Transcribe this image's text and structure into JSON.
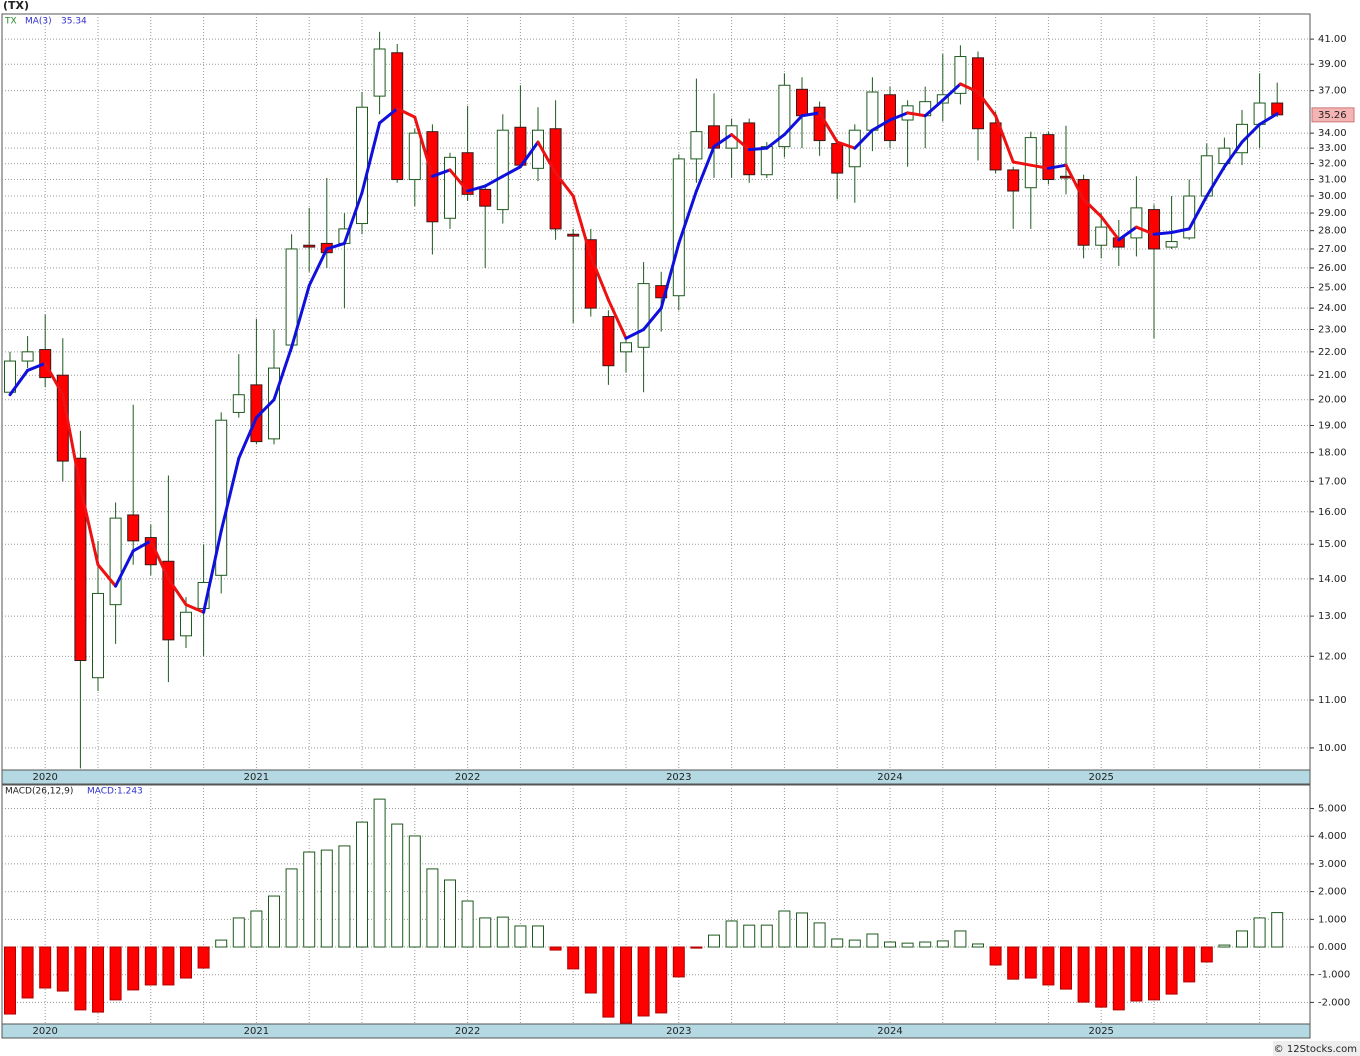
{
  "chart_data": [
    {
      "type": "candlestick",
      "title": "(TX)",
      "symbol": "TX",
      "log": true,
      "grid": true,
      "up_color": "#ffffff",
      "down_color": "#ff0000",
      "edge_color": "#1e5a1e",
      "categories": [
        null,
        null,
        "2020",
        null,
        null,
        null,
        null,
        null,
        null,
        null,
        null,
        null,
        null,
        null,
        "2021",
        null,
        null,
        null,
        null,
        null,
        null,
        null,
        null,
        null,
        null,
        null,
        "2022",
        null,
        null,
        null,
        null,
        null,
        null,
        null,
        null,
        null,
        null,
        null,
        "2023",
        null,
        null,
        null,
        null,
        null,
        null,
        null,
        null,
        null,
        null,
        null,
        "2024",
        null,
        null,
        null,
        null,
        null,
        null,
        null,
        null,
        null,
        null,
        null,
        "2025",
        null,
        null,
        null,
        null,
        null,
        null,
        null,
        null,
        null,
        null
      ],
      "open": [
        20.3,
        21.6,
        22.1,
        21.0,
        17.8,
        11.5,
        13.3,
        15.9,
        15.2,
        14.5,
        12.5,
        13.2,
        14.1,
        19.5,
        20.6,
        18.5,
        22.3,
        27.2,
        27.3,
        27.3,
        28.4,
        36.6,
        39.9,
        31.0,
        34.1,
        28.7,
        32.7,
        30.4,
        29.2,
        34.4,
        31.7,
        34.3,
        27.8,
        27.5,
        23.6,
        22.0,
        22.2,
        25.1,
        24.6,
        32.3,
        34.5,
        33.0,
        34.7,
        31.3,
        33.1,
        37.1,
        35.8,
        33.3,
        31.8,
        34.2,
        36.7,
        34.9,
        35.2,
        36.1,
        36.8,
        39.5,
        34.7,
        31.6,
        30.5,
        33.9,
        31.2,
        31.0,
        27.2,
        27.6,
        27.6,
        29.2,
        27.1,
        27.6,
        30.0,
        32.0,
        32.7,
        34.6,
        36.1
      ],
      "high": [
        22.0,
        22.7,
        23.7,
        22.6,
        18.8,
        15.1,
        16.3,
        19.8,
        15.6,
        17.2,
        13.5,
        15.0,
        19.5,
        21.9,
        23.5,
        23.0,
        27.8,
        29.3,
        31.1,
        29.0,
        36.9,
        41.6,
        40.6,
        34.3,
        34.6,
        32.7,
        35.9,
        30.7,
        35.3,
        37.4,
        35.8,
        36.3,
        28.1,
        28.1,
        23.9,
        22.7,
        26.3,
        25.8,
        32.6,
        37.9,
        36.8,
        35.0,
        35.0,
        33.4,
        38.3,
        38.0,
        36.2,
        33.6,
        34.6,
        38.0,
        37.3,
        36.3,
        37.3,
        39.8,
        40.5,
        40.0,
        35.5,
        31.8,
        34.1,
        34.1,
        34.5,
        31.3,
        29.0,
        28.6,
        31.2,
        29.5,
        30.0,
        31.0,
        33.3,
        33.7,
        35.6,
        38.3,
        37.6
      ],
      "low": [
        20.2,
        21.3,
        20.5,
        17.0,
        9.6,
        11.2,
        12.3,
        14.4,
        14.1,
        11.4,
        12.2,
        12.0,
        13.6,
        19.3,
        18.3,
        18.3,
        22.0,
        25.8,
        26.0,
        24.0,
        27.8,
        35.3,
        30.8,
        29.4,
        26.7,
        28.1,
        29.7,
        26.0,
        28.4,
        31.7,
        30.9,
        27.5,
        23.3,
        23.6,
        20.6,
        21.1,
        20.3,
        22.9,
        23.9,
        30.8,
        31.1,
        31.1,
        30.8,
        31.1,
        32.4,
        33.0,
        32.5,
        29.8,
        29.6,
        32.8,
        33.0,
        31.8,
        33.0,
        34.8,
        36.0,
        32.2,
        31.4,
        28.1,
        28.1,
        30.7,
        30.1,
        26.5,
        26.5,
        26.1,
        26.6,
        22.6,
        27.0,
        27.5,
        29.8,
        31.6,
        31.9,
        33.0,
        35.1
      ],
      "close": [
        21.6,
        22.0,
        20.9,
        17.7,
        11.9,
        13.6,
        15.8,
        15.1,
        14.4,
        12.4,
        13.1,
        13.9,
        19.2,
        20.2,
        18.4,
        21.3,
        27.0,
        27.1,
        26.8,
        28.1,
        35.8,
        40.2,
        31.0,
        34.0,
        28.5,
        32.4,
        30.1,
        29.4,
        34.2,
        31.9,
        34.2,
        28.1,
        27.7,
        24.0,
        21.4,
        22.4,
        25.2,
        24.5,
        32.3,
        34.1,
        33.0,
        34.5,
        31.3,
        33.1,
        37.4,
        35.2,
        33.5,
        31.4,
        34.2,
        36.9,
        33.5,
        35.9,
        36.2,
        36.7,
        39.6,
        34.3,
        31.6,
        30.3,
        33.7,
        31.0,
        31.1,
        27.2,
        28.2,
        27.1,
        29.3,
        27.0,
        27.4,
        30.0,
        32.5,
        33.0,
        34.6,
        36.1,
        35.26
      ],
      "ma": {
        "name": "MA(3)",
        "up_color": "#1010dd",
        "down_color": "#ee1111",
        "values": [
          20.2,
          21.2,
          21.5,
          20.2,
          16.8,
          14.4,
          13.8,
          14.8,
          15.1,
          14.0,
          13.3,
          13.1,
          15.4,
          17.8,
          19.3,
          20.0,
          22.2,
          25.1,
          27.0,
          27.3,
          30.2,
          34.7,
          35.7,
          35.1,
          31.2,
          31.6,
          30.3,
          30.6,
          31.2,
          31.8,
          33.4,
          31.4,
          30.0,
          26.6,
          24.4,
          22.6,
          23.0,
          24.0,
          27.3,
          30.3,
          33.1,
          33.9,
          32.9,
          33.0,
          33.9,
          35.2,
          35.4,
          33.4,
          33.0,
          34.2,
          34.9,
          35.4,
          35.2,
          36.3,
          37.5,
          36.9,
          35.2,
          32.1,
          31.9,
          31.7,
          31.9,
          29.8,
          28.8,
          27.5,
          28.2,
          27.8,
          27.9,
          28.1,
          30.0,
          31.8,
          33.4,
          34.6,
          35.34
        ]
      },
      "ylim": [
        9.57,
        43.1
      ],
      "yticks": [
        {
          "value": 10,
          "label": "10.00"
        },
        {
          "value": 11,
          "label": "11.00"
        },
        {
          "value": 12,
          "label": "12.00"
        },
        {
          "value": 13,
          "label": "13.00"
        },
        {
          "value": 14,
          "label": "14.00"
        },
        {
          "value": 15,
          "label": "15.00"
        },
        {
          "value": 16,
          "label": "16.00"
        },
        {
          "value": 17,
          "label": "17.00"
        },
        {
          "value": 18,
          "label": "18.00"
        },
        {
          "value": 19,
          "label": "19.00"
        },
        {
          "value": 20,
          "label": "20.00"
        },
        {
          "value": 21,
          "label": "21.00"
        },
        {
          "value": 22,
          "label": "22.00"
        },
        {
          "value": 23,
          "label": "23.00"
        },
        {
          "value": 24,
          "label": "24.00"
        },
        {
          "value": 25,
          "label": "25.00"
        },
        {
          "value": 26,
          "label": "26.00"
        },
        {
          "value": 27,
          "label": "27.00"
        },
        {
          "value": 28,
          "label": "28.00"
        },
        {
          "value": 29,
          "label": "29.00"
        },
        {
          "value": 30,
          "label": "30.00"
        },
        {
          "value": 31,
          "label": "31.00"
        },
        {
          "value": 32,
          "label": "32.00"
        },
        {
          "value": 33,
          "label": "33.00"
        },
        {
          "value": 34,
          "label": "34.00"
        },
        {
          "value": 37,
          "label": "37.00"
        },
        {
          "value": 39,
          "label": "39.00"
        },
        {
          "value": 41,
          "label": "41.00"
        }
      ]
    },
    {
      "type": "bar",
      "title": "MACD(26,12,9)",
      "value_text": "MACD:1.243",
      "grid": true,
      "up_color": "#ffffff",
      "down_color": "#ff0000",
      "edge_color": "#1e5a1e",
      "categories": [
        null,
        null,
        "2020",
        null,
        null,
        null,
        null,
        null,
        null,
        null,
        null,
        null,
        null,
        null,
        "2021",
        null,
        null,
        null,
        null,
        null,
        null,
        null,
        null,
        null,
        null,
        null,
        "2022",
        null,
        null,
        null,
        null,
        null,
        null,
        null,
        null,
        null,
        null,
        null,
        "2023",
        null,
        null,
        null,
        null,
        null,
        null,
        null,
        null,
        null,
        null,
        null,
        "2024",
        null,
        null,
        null,
        null,
        null,
        null,
        null,
        null,
        null,
        null,
        null,
        "2025",
        null,
        null,
        null,
        null,
        null,
        null,
        null,
        null,
        null,
        null
      ],
      "values": [
        -2.42,
        -1.84,
        -1.48,
        -1.59,
        -2.27,
        -2.35,
        -1.91,
        -1.55,
        -1.37,
        -1.37,
        -1.12,
        -0.76,
        0.25,
        1.05,
        1.3,
        1.84,
        2.82,
        3.43,
        3.5,
        3.65,
        4.51,
        5.34,
        4.44,
        4.01,
        2.82,
        2.42,
        1.66,
        1.05,
        1.08,
        0.76,
        0.76,
        -0.11,
        -0.79,
        -1.66,
        -2.53,
        -2.75,
        -2.49,
        -2.38,
        -1.08,
        -0.04,
        0.43,
        0.94,
        0.79,
        0.79,
        1.3,
        1.23,
        0.87,
        0.29,
        0.25,
        0.47,
        0.18,
        0.14,
        0.18,
        0.22,
        0.58,
        0.11,
        -0.65,
        -1.16,
        -1.12,
        -1.37,
        -1.52,
        -1.99,
        -2.17,
        -2.27,
        -1.95,
        -1.91,
        -1.7,
        -1.26,
        -0.54,
        0.07,
        0.58,
        1.05,
        1.243
      ],
      "ylim": [
        -2.78,
        5.85
      ],
      "yticks": [
        {
          "value": -2,
          "label": "-2.000"
        },
        {
          "value": -1,
          "label": "-1.000"
        },
        {
          "value": 0,
          "label": "0.000"
        },
        {
          "value": 1,
          "label": "1.000"
        },
        {
          "value": 2,
          "label": "2.000"
        },
        {
          "value": 3,
          "label": "3.000"
        },
        {
          "value": 4,
          "label": "4.000"
        },
        {
          "value": 5,
          "label": "5.000"
        }
      ]
    }
  ],
  "footer": "© 12Stocks.com"
}
